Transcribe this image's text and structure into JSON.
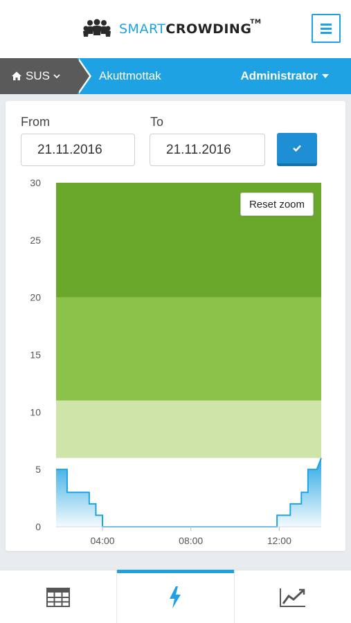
{
  "app": {
    "brand_part1": "SMART",
    "brand_part2": "CROWDING",
    "brand_tm": "TM"
  },
  "nav": {
    "home_label": "SUS",
    "crumb": "Akuttmottak",
    "user": "Administrator"
  },
  "filters": {
    "from_label": "From",
    "from_value": "21.11.2016",
    "to_label": "To",
    "to_value": "21.11.2016"
  },
  "chart": {
    "reset_label": "Reset zoom"
  },
  "chart_data": {
    "type": "area",
    "ylim": [
      0,
      30
    ],
    "y_ticks": [
      "0",
      "5",
      "10",
      "15",
      "20",
      "25",
      "30"
    ],
    "x_ticks": [
      "04:00",
      "08:00",
      "12:00"
    ],
    "x_range_hours": [
      1.9,
      13.9
    ],
    "bands": [
      {
        "from": 11,
        "to": 20,
        "color": "#8bc34a"
      },
      {
        "from": 6,
        "to": 11,
        "color": "#cfe4a8"
      },
      {
        "from": 20,
        "to": 30,
        "color": "#6aa82b"
      }
    ],
    "series": [
      {
        "color": "#1ea2e3",
        "points": [
          [
            1.9,
            5
          ],
          [
            2.4,
            5
          ],
          [
            2.4,
            3
          ],
          [
            3.4,
            3
          ],
          [
            3.4,
            2
          ],
          [
            3.7,
            2
          ],
          [
            3.7,
            1
          ],
          [
            4.0,
            1
          ],
          [
            4.0,
            0
          ],
          [
            11.9,
            0
          ],
          [
            11.9,
            1
          ],
          [
            12.5,
            1
          ],
          [
            12.5,
            2
          ],
          [
            13.0,
            2
          ],
          [
            13.0,
            3
          ],
          [
            13.3,
            3
          ],
          [
            13.3,
            5
          ],
          [
            13.7,
            5
          ],
          [
            13.9,
            6
          ]
        ]
      }
    ]
  },
  "tabs": [
    {
      "name": "table",
      "icon": "table-icon"
    },
    {
      "name": "live",
      "icon": "bolt-icon"
    },
    {
      "name": "trend",
      "icon": "trend-icon"
    }
  ],
  "colors": {
    "accent": "#1ea2e3",
    "nav_dark": "#5a5a5a"
  }
}
